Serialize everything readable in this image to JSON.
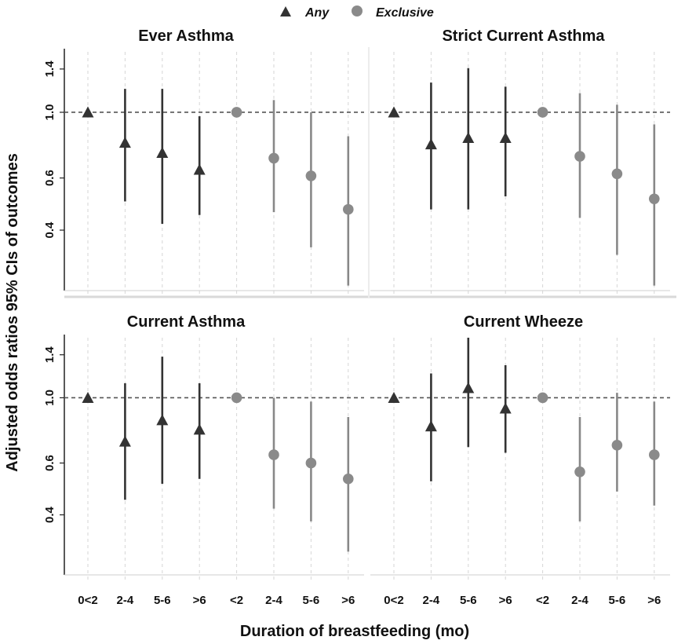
{
  "chart_data": {
    "type": "scatter",
    "subtype": "point-range (odds ratios with 95% CIs)",
    "ylabel": "Adjusted odds ratios 95% CIs of outcomes",
    "xlabel": "Duration of breastfeeding (mo)",
    "legend": {
      "position": "top-center",
      "entries": [
        {
          "name": "Any",
          "marker": "triangle",
          "color": "#333333"
        },
        {
          "name": "Exclusive",
          "marker": "circle",
          "color": "#8a8a8a"
        }
      ]
    },
    "categories": [
      "0<2",
      "2-4",
      "5-6",
      ">6",
      "<2",
      "2-4",
      "5-6",
      ">6"
    ],
    "groups": [
      "Any",
      "Any",
      "Any",
      "Any",
      "Exclusive",
      "Exclusive",
      "Exclusive",
      "Exclusive"
    ],
    "y_scale": "log",
    "ylim": [
      0.25,
      1.6
    ],
    "yticks": [
      0.4,
      0.6,
      1.0,
      1.4
    ],
    "ytick_labels": [
      "0.4",
      "0.6",
      "1.0",
      "1.4"
    ],
    "reference_line": 1.0,
    "panels": [
      {
        "title": "Ever Asthma",
        "or": [
          1.0,
          0.79,
          0.73,
          0.64,
          1.0,
          0.7,
          0.61,
          0.47
        ],
        "lower": [
          1.0,
          0.5,
          0.42,
          0.45,
          1.0,
          0.46,
          0.35,
          0.26
        ],
        "upper": [
          1.0,
          1.2,
          1.2,
          0.97,
          1.0,
          1.1,
          1.0,
          0.83
        ]
      },
      {
        "title": "Strict Current Asthma",
        "or": [
          1.0,
          0.78,
          0.82,
          0.82,
          1.0,
          0.71,
          0.62,
          0.51
        ],
        "lower": [
          1.0,
          0.47,
          0.47,
          0.52,
          1.0,
          0.44,
          0.33,
          0.26
        ],
        "upper": [
          1.0,
          1.26,
          1.41,
          1.22,
          1.0,
          1.16,
          1.06,
          0.91
        ]
      },
      {
        "title": "Current Asthma",
        "or": [
          1.0,
          0.71,
          0.84,
          0.78,
          1.0,
          0.64,
          0.6,
          0.53
        ],
        "lower": [
          1.0,
          0.45,
          0.51,
          0.53,
          1.0,
          0.42,
          0.38,
          0.3
        ],
        "upper": [
          1.0,
          1.12,
          1.38,
          1.12,
          1.0,
          1.0,
          0.97,
          0.86
        ]
      },
      {
        "title": "Current Wheeze",
        "or": [
          1.0,
          0.8,
          1.08,
          0.92,
          1.0,
          0.56,
          0.69,
          0.64
        ],
        "lower": [
          1.0,
          0.52,
          0.68,
          0.65,
          1.0,
          0.38,
          0.48,
          0.43
        ],
        "upper": [
          1.0,
          1.21,
          1.6,
          1.29,
          1.0,
          0.86,
          1.04,
          0.97
        ]
      }
    ]
  }
}
